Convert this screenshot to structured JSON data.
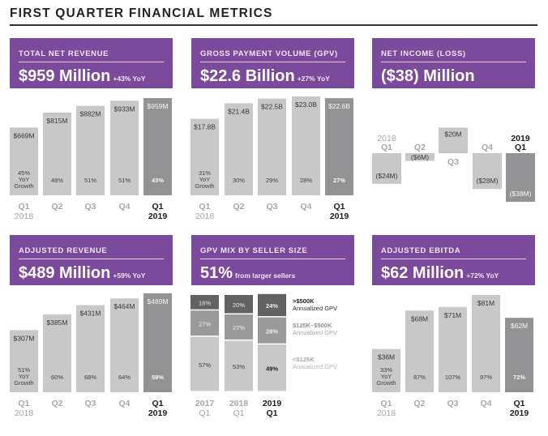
{
  "page": {
    "title": "FIRST QUARTER FINANCIAL METRICS"
  },
  "colors": {
    "header_purple": "#7b4a9c",
    "bar_light": "#c8c8c9",
    "bar_highlight": "#939395",
    "mix_dark": "#626264",
    "mix_mid": "#9a9a9c",
    "mix_light": "#c8c8c9"
  },
  "cards": [
    {
      "label": "TOTAL NET REVENUE",
      "value": "$959 Million",
      "suffix": "+43% YoY"
    },
    {
      "label": "GROSS PAYMENT VOLUME (GPV)",
      "value": "$22.6 Billion",
      "suffix": "+27% YoY"
    },
    {
      "label": "NET INCOME (LOSS)",
      "value": "($38) Million",
      "suffix": ""
    },
    {
      "label": "ADJUSTED REVENUE",
      "value": "$489 Million",
      "suffix": "+59% YoY"
    },
    {
      "label": "GPV MIX BY SELLER SIZE",
      "value": "51%",
      "suffix": "from larger sellers"
    },
    {
      "label": "ADJUSTED EBITDA",
      "value": "$62 Million",
      "suffix": "+72% YoY"
    }
  ],
  "chart_data": [
    {
      "id": "total-net-revenue",
      "type": "bar",
      "title": "TOTAL NET REVENUE",
      "unit": "$M",
      "categories": [
        {
          "quarter": "Q1",
          "year": "2018",
          "highlight": false
        },
        {
          "quarter": "Q2",
          "year": "",
          "highlight": false
        },
        {
          "quarter": "Q3",
          "year": "",
          "highlight": false
        },
        {
          "quarter": "Q4",
          "year": "",
          "highlight": false
        },
        {
          "quarter": "Q1",
          "year": "2019",
          "highlight": true
        }
      ],
      "values": [
        669,
        815,
        882,
        933,
        959
      ],
      "value_labels": [
        "$669M",
        "$815M",
        "$882M",
        "$933M",
        "$959M"
      ],
      "growth_labels": [
        "45%",
        "48%",
        "51%",
        "51%",
        "43%"
      ],
      "growth_caption": [
        "YoY",
        "Growth"
      ],
      "ylim": [
        0,
        959
      ]
    },
    {
      "id": "gpv",
      "type": "bar",
      "title": "GROSS PAYMENT VOLUME (GPV)",
      "unit": "$B",
      "categories": [
        {
          "quarter": "Q1",
          "year": "2018",
          "highlight": false
        },
        {
          "quarter": "Q2",
          "year": "",
          "highlight": false
        },
        {
          "quarter": "Q3",
          "year": "",
          "highlight": false
        },
        {
          "quarter": "Q4",
          "year": "",
          "highlight": false
        },
        {
          "quarter": "Q1",
          "year": "2019",
          "highlight": true
        }
      ],
      "values": [
        17.8,
        21.4,
        22.5,
        23.0,
        22.6
      ],
      "value_labels": [
        "$17.8B",
        "$21.4B",
        "$22.5B",
        "$23.0B",
        "$22.6B"
      ],
      "growth_labels": [
        "31%",
        "30%",
        "29%",
        "28%",
        "27%"
      ],
      "growth_caption": [
        "YoY",
        "Growth"
      ],
      "ylim": [
        0,
        23.0
      ]
    },
    {
      "id": "net-income",
      "type": "bar",
      "title": "NET INCOME (LOSS)",
      "unit": "$M",
      "categories": [
        {
          "quarter": "Q1",
          "year": "2018",
          "highlight": false
        },
        {
          "quarter": "Q2",
          "year": "",
          "highlight": false
        },
        {
          "quarter": "Q3",
          "year": "",
          "highlight": false
        },
        {
          "quarter": "Q4",
          "year": "",
          "highlight": false
        },
        {
          "quarter": "Q1",
          "year": "2019",
          "highlight": true
        }
      ],
      "values": [
        -24,
        -6,
        20,
        -28,
        -38
      ],
      "value_labels": [
        "($24M)",
        "($6M)",
        "$20M",
        "($28M)",
        "($38M)"
      ],
      "ylim": [
        -38,
        20
      ]
    },
    {
      "id": "adjusted-revenue",
      "type": "bar",
      "title": "ADJUSTED REVENUE",
      "unit": "$M",
      "categories": [
        {
          "quarter": "Q1",
          "year": "2018",
          "highlight": false
        },
        {
          "quarter": "Q2",
          "year": "",
          "highlight": false
        },
        {
          "quarter": "Q3",
          "year": "",
          "highlight": false
        },
        {
          "quarter": "Q4",
          "year": "",
          "highlight": false
        },
        {
          "quarter": "Q1",
          "year": "2019",
          "highlight": true
        }
      ],
      "values": [
        307,
        385,
        431,
        464,
        489
      ],
      "value_labels": [
        "$307M",
        "$385M",
        "$431M",
        "$464M",
        "$489M"
      ],
      "growth_labels": [
        "51%",
        "60%",
        "68%",
        "64%",
        "59%"
      ],
      "growth_caption": [
        "YoY",
        "Growth"
      ],
      "ylim": [
        0,
        489
      ]
    },
    {
      "id": "gpv-mix",
      "type": "bar",
      "stacked": true,
      "title": "GPV MIX BY SELLER SIZE",
      "unit": "%",
      "categories": [
        {
          "year": "2017",
          "quarter": "Q1",
          "highlight": false
        },
        {
          "year": "2018",
          "quarter": "Q1",
          "highlight": false
        },
        {
          "year": "2019",
          "quarter": "Q1",
          "highlight": true
        }
      ],
      "series": [
        {
          "name": "<$125K",
          "sub": "Annualized GPV",
          "values": [
            57,
            53,
            49
          ],
          "labels": [
            "57%",
            "53%",
            "49%"
          ]
        },
        {
          "name": "$125K–$500K",
          "sub": "Annualized GPV",
          "values": [
            27,
            27,
            28
          ],
          "labels": [
            "27%",
            "27%",
            "28%"
          ]
        },
        {
          "name": ">$500K",
          "sub": "Annualized GPV",
          "values": [
            16,
            20,
            24
          ],
          "labels": [
            "16%",
            "20%",
            "24%"
          ]
        }
      ],
      "ylim": [
        0,
        100
      ]
    },
    {
      "id": "adjusted-ebitda",
      "type": "bar",
      "title": "ADJUSTED EBITDA",
      "unit": "$M",
      "categories": [
        {
          "quarter": "Q1",
          "year": "2018",
          "highlight": false
        },
        {
          "quarter": "Q2",
          "year": "",
          "highlight": false
        },
        {
          "quarter": "Q3",
          "year": "",
          "highlight": false
        },
        {
          "quarter": "Q4",
          "year": "",
          "highlight": false
        },
        {
          "quarter": "Q1",
          "year": "2019",
          "highlight": true
        }
      ],
      "values": [
        36,
        68,
        71,
        81,
        62
      ],
      "value_labels": [
        "$36M",
        "$68M",
        "$71M",
        "$81M",
        "$62M"
      ],
      "growth_labels": [
        "33%",
        "87%",
        "107%",
        "97%",
        "72%"
      ],
      "growth_caption": [
        "YoY",
        "Growth"
      ],
      "ylim": [
        0,
        81
      ]
    }
  ]
}
